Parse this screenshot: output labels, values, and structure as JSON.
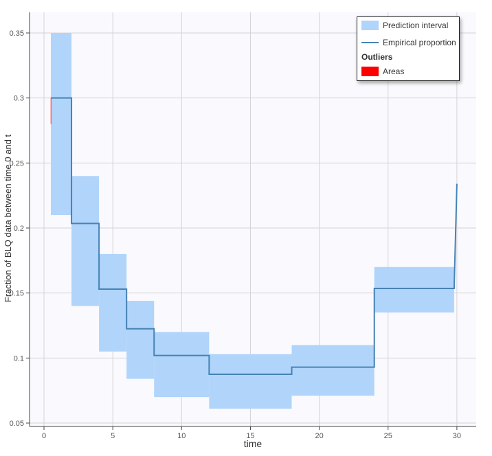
{
  "chart_data": {
    "type": "area",
    "xlabel": "time",
    "ylabel": "Fraction of BLQ data between time 0 and t",
    "xlim": [
      -1,
      31.5
    ],
    "ylim": [
      0.047,
      0.366
    ],
    "xticks": [
      0,
      5,
      10,
      15,
      20,
      25,
      30
    ],
    "yticks": [
      0.05,
      0.1,
      0.15,
      0.2,
      0.25,
      0.3,
      0.35
    ],
    "ytick_labels": [
      "0.05",
      "0.1",
      "0.15",
      "0.2",
      "0.25",
      "0.3",
      "0.35"
    ],
    "grid": true,
    "legend_position": "top-right",
    "prediction_interval": {
      "name": "Prediction interval",
      "color": "#b0d4fa",
      "bins": [
        {
          "x0": 0.5,
          "x1": 2,
          "low": 0.21,
          "high": 0.35
        },
        {
          "x0": 2,
          "x1": 4,
          "low": 0.14,
          "high": 0.24
        },
        {
          "x0": 4,
          "x1": 6,
          "low": 0.105,
          "high": 0.18
        },
        {
          "x0": 6,
          "x1": 8,
          "low": 0.084,
          "high": 0.144
        },
        {
          "x0": 8,
          "x1": 12,
          "low": 0.07,
          "high": 0.12
        },
        {
          "x0": 12,
          "x1": 18,
          "low": 0.061,
          "high": 0.103
        },
        {
          "x0": 18,
          "x1": 24,
          "low": 0.071,
          "high": 0.11
        },
        {
          "x0": 24,
          "x1": 29.8,
          "low": 0.135,
          "high": 0.17
        }
      ]
    },
    "empirical_proportion": {
      "name": "Empirical proportion",
      "color": "#4682b4",
      "x": [
        0.5,
        2,
        2,
        4,
        4,
        6,
        6,
        8,
        8,
        12,
        12,
        18,
        18,
        24,
        24,
        29.8,
        30
      ],
      "y": [
        0.3,
        0.3,
        0.2035,
        0.2035,
        0.153,
        0.153,
        0.1225,
        0.1225,
        0.102,
        0.102,
        0.0875,
        0.0875,
        0.093,
        0.093,
        0.1535,
        0.1535,
        0.234
      ]
    },
    "outlier_areas": {
      "name": "Areas",
      "color": "#ff0000",
      "segments": [
        {
          "x": 0.5,
          "low": 0.28,
          "high": 0.3
        }
      ]
    },
    "legend": {
      "items": [
        "Prediction interval",
        "Empirical proportion"
      ],
      "section": "Outliers",
      "section_items": [
        "Areas"
      ]
    }
  }
}
